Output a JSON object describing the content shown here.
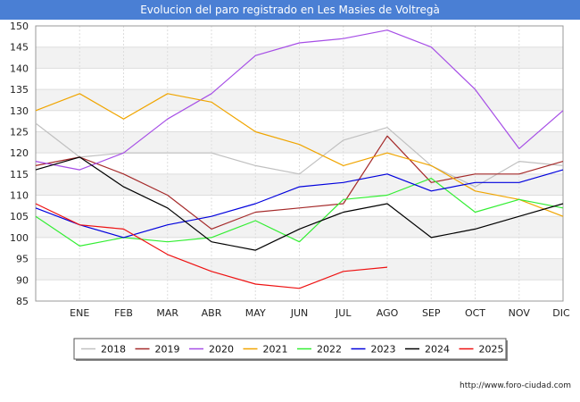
{
  "chart_data": {
    "type": "line",
    "title": "Evolucion del paro registrado en Les Masies de Voltregà",
    "categories": [
      "",
      "ENE",
      "FEB",
      "MAR",
      "ABR",
      "MAY",
      "JUN",
      "JUL",
      "AGO",
      "SEP",
      "OCT",
      "NOV",
      "DIC"
    ],
    "ylim": [
      85,
      150
    ],
    "yticks": [
      85,
      90,
      95,
      100,
      105,
      110,
      115,
      120,
      125,
      130,
      135,
      140,
      145,
      150
    ],
    "xlabel": "",
    "ylabel": "",
    "grid": true,
    "legend_position": "bottom",
    "series": [
      {
        "name": "2018",
        "color": "#c0c0c0",
        "values": [
          127,
          119,
          120,
          120,
          120,
          117,
          115,
          123,
          126,
          117,
          112,
          118,
          117
        ]
      },
      {
        "name": "2019",
        "color": "#a52a2a",
        "values": [
          117,
          119,
          115,
          110,
          102,
          106,
          107,
          108,
          124,
          113,
          115,
          115,
          118
        ]
      },
      {
        "name": "2020",
        "color": "#a64ee6",
        "values": [
          118,
          116,
          120,
          128,
          134,
          143,
          146,
          147,
          149,
          145,
          135,
          121,
          130
        ]
      },
      {
        "name": "2021",
        "color": "#f0a500",
        "values": [
          130,
          134,
          128,
          134,
          132,
          125,
          122,
          117,
          120,
          117,
          111,
          109,
          105
        ]
      },
      {
        "name": "2022",
        "color": "#33ee33",
        "values": [
          105,
          98,
          100,
          99,
          100,
          104,
          99,
          109,
          110,
          114,
          106,
          109,
          107
        ]
      },
      {
        "name": "2023",
        "color": "#0000dd",
        "values": [
          107,
          103,
          100,
          103,
          105,
          108,
          112,
          113,
          115,
          111,
          113,
          113,
          116
        ]
      },
      {
        "name": "2024",
        "color": "#000000",
        "values": [
          116,
          119,
          112,
          107,
          99,
          97,
          102,
          106,
          108,
          100,
          102,
          105,
          108
        ]
      },
      {
        "name": "2025",
        "color": "#ee1111",
        "values": [
          108,
          103,
          102,
          96,
          92,
          89,
          88,
          92,
          93,
          null,
          null,
          null,
          null
        ]
      }
    ]
  },
  "footer": {
    "url": "http://www.foro-ciudad.com"
  }
}
